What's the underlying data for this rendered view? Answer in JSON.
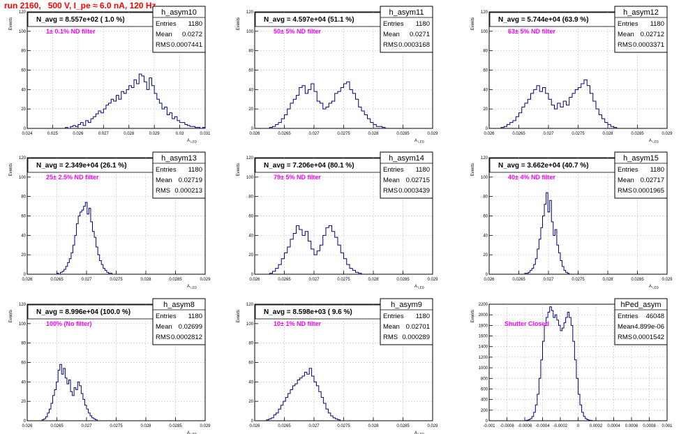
{
  "page": {
    "title": "run 2160,   500 V, I_pe ≈ 6.0 nA, 120 Hz"
  },
  "colors": {
    "histogram": "#000080",
    "title": "#ff0000",
    "annotation": "#ff00ff",
    "grid": "#c8c8c8"
  },
  "labels": {
    "y_axis": "Events",
    "x_axis_symbol": "A",
    "x_axis_subscript": "LED",
    "stats_entries": "Entries",
    "stats_mean": "Mean",
    "stats_rms": "RMS"
  },
  "chart_data": [
    {
      "type": "bar",
      "name": "h_asym10",
      "summary": "N_avg = 8.557e+02 ( 1.0 %)",
      "annotation": "1± 0.1% ND filter",
      "stats": {
        "entries": "1180",
        "mean": "0.0272",
        "rms": "0.0007441"
      },
      "ylabel": "Events",
      "xlabel": "A_LED",
      "xlim": [
        0.024,
        0.031
      ],
      "ylim": [
        0,
        120
      ],
      "grid": true,
      "xticks": [
        "0.024",
        "0.025",
        "0.026",
        "0.027",
        "0.028",
        "0.029",
        "0.03",
        "0.031"
      ],
      "yticks": [
        "0",
        "20",
        "40",
        "60",
        "80",
        "100",
        "120"
      ],
      "bin_start": 0.0255,
      "bin_width": 0.0001,
      "values": [
        1,
        0,
        2,
        3,
        2,
        4,
        6,
        3,
        8,
        6,
        10,
        12,
        15,
        18,
        16,
        20,
        24,
        26,
        30,
        28,
        34,
        30,
        38,
        36,
        40,
        44,
        42,
        50,
        46,
        56,
        54,
        48,
        40,
        52,
        44,
        36,
        30,
        26,
        20,
        22,
        14,
        16,
        10,
        12,
        8,
        6,
        6,
        4,
        3,
        2,
        2,
        1,
        1,
        0,
        1
      ]
    },
    {
      "type": "bar",
      "name": "h_asym11",
      "summary": "N_avg = 4.597e+04 (51.1 %)",
      "annotation": "50± 5% ND filter",
      "stats": {
        "entries": "1180",
        "mean": "0.0271",
        "rms": "0.0003168"
      },
      "ylabel": "Events",
      "xlabel": "A_LED",
      "xlim": [
        0.026,
        0.029
      ],
      "ylim": [
        0,
        120
      ],
      "grid": true,
      "xticks": [
        "0.026",
        "0.0265",
        "0.027",
        "0.0275",
        "0.028",
        "0.0285",
        "0.029"
      ],
      "yticks": [
        "0",
        "20",
        "40",
        "60",
        "80",
        "100",
        "120"
      ],
      "bin_start": 0.02625,
      "bin_width": 5e-05,
      "values": [
        1,
        2,
        4,
        6,
        10,
        14,
        20,
        26,
        30,
        34,
        42,
        44,
        36,
        40,
        46,
        38,
        28,
        26,
        20,
        22,
        26,
        28,
        36,
        38,
        42,
        46,
        48,
        40,
        36,
        30,
        22,
        18,
        14,
        10,
        6,
        4,
        2,
        2,
        1
      ]
    },
    {
      "type": "bar",
      "name": "h_asym12",
      "summary": "N_avg = 5.744e+04 (63.9 %)",
      "annotation": "63± 5% ND filter",
      "stats": {
        "entries": "1180",
        "mean": "0.02712",
        "rms": "0.0003371"
      },
      "ylabel": "Events",
      "xlabel": "A_LED",
      "xlim": [
        0.026,
        0.029
      ],
      "ylim": [
        0,
        120
      ],
      "grid": true,
      "xticks": [
        "0.026",
        "0.0265",
        "0.027",
        "0.0275",
        "0.028",
        "0.0285",
        "0.029"
      ],
      "yticks": [
        "0",
        "20",
        "40",
        "60",
        "80",
        "100",
        "120"
      ],
      "bin_start": 0.0262,
      "bin_width": 5e-05,
      "values": [
        1,
        2,
        4,
        6,
        8,
        12,
        16,
        22,
        26,
        30,
        36,
        40,
        44,
        38,
        42,
        36,
        30,
        24,
        20,
        26,
        22,
        28,
        24,
        32,
        36,
        40,
        42,
        46,
        50,
        44,
        36,
        28,
        20,
        14,
        10,
        6,
        4,
        2,
        1
      ]
    },
    {
      "type": "bar",
      "name": "h_asym13",
      "summary": "N_avg = 2.349e+04 (26.1 %)",
      "annotation": "25± 2.5% ND filter",
      "stats": {
        "entries": "1180",
        "mean": "0.02719",
        "rms": "0.000213"
      },
      "ylabel": "Events",
      "xlabel": "A_LED",
      "xlim": [
        0.026,
        0.029
      ],
      "ylim": [
        0,
        120
      ],
      "grid": true,
      "xticks": [
        "0.026",
        "0.0265",
        "0.027",
        "0.0275",
        "0.028",
        "0.0285",
        "0.029"
      ],
      "yticks": [
        "0",
        "20",
        "40",
        "60",
        "80",
        "100",
        "120"
      ],
      "bin_start": 0.0265,
      "bin_width": 3e-05,
      "values": [
        1,
        0,
        2,
        3,
        5,
        8,
        12,
        16,
        22,
        30,
        40,
        52,
        60,
        64,
        66,
        70,
        74,
        62,
        68,
        54,
        44,
        38,
        28,
        20,
        14,
        10,
        6,
        4,
        2,
        1,
        1
      ]
    },
    {
      "type": "bar",
      "name": "h_asym14",
      "summary": "N_avg = 7.206e+04 (80.1 %)",
      "annotation": "79± 5% ND filter",
      "stats": {
        "entries": "1180",
        "mean": "0.02715",
        "rms": "0.0003439"
      },
      "ylabel": "Events",
      "xlabel": "A_LED",
      "xlim": [
        0.026,
        0.029
      ],
      "ylim": [
        0,
        120
      ],
      "grid": true,
      "xticks": [
        "0.026",
        "0.0265",
        "0.027",
        "0.0275",
        "0.028",
        "0.0285",
        "0.029"
      ],
      "yticks": [
        "0",
        "20",
        "40",
        "60",
        "80",
        "100",
        "120"
      ],
      "bin_start": 0.02625,
      "bin_width": 5e-05,
      "values": [
        1,
        3,
        6,
        10,
        16,
        22,
        28,
        36,
        42,
        50,
        46,
        40,
        44,
        34,
        26,
        20,
        24,
        30,
        40,
        48,
        50,
        44,
        38,
        30,
        22,
        16,
        10,
        6,
        4,
        2,
        1
      ]
    },
    {
      "type": "bar",
      "name": "h_asym15",
      "summary": "N_avg = 3.662e+04 (40.7 %)",
      "annotation": "40± 4% ND filter",
      "stats": {
        "entries": "1180",
        "mean": "0.02717",
        "rms": "0.0001965"
      },
      "ylabel": "Events",
      "xlabel": "A_LED",
      "xlim": [
        0.026,
        0.029
      ],
      "ylim": [
        0,
        120
      ],
      "grid": true,
      "xticks": [
        "0.026",
        "0.0265",
        "0.027",
        "0.0275",
        "0.028",
        "0.0285",
        "0.029"
      ],
      "yticks": [
        "0",
        "20",
        "40",
        "60",
        "80",
        "100",
        "120"
      ],
      "bin_start": 0.0266,
      "bin_width": 3e-05,
      "values": [
        1,
        1,
        2,
        4,
        6,
        10,
        16,
        26,
        36,
        48,
        60,
        72,
        84,
        64,
        76,
        54,
        40,
        46,
        30,
        22,
        14,
        8,
        4,
        2,
        1
      ]
    },
    {
      "type": "bar",
      "name": "h_asym8",
      "summary": "N_avg = 8.996e+04 (100.0 %)",
      "annotation": "100% (No filter)",
      "stats": {
        "entries": "1180",
        "mean": "0.02699",
        "rms": "0.0002812"
      },
      "ylabel": "Events",
      "xlabel": "A_LED",
      "xlim": [
        0.026,
        0.029
      ],
      "ylim": [
        0,
        120
      ],
      "grid": true,
      "xticks": [
        "0.026",
        "0.0265",
        "0.027",
        "0.0275",
        "0.028",
        "0.0285",
        "0.029"
      ],
      "yticks": [
        "0",
        "20",
        "40",
        "60",
        "80",
        "100",
        "120"
      ],
      "bin_start": 0.02625,
      "bin_width": 3e-05,
      "values": [
        1,
        2,
        4,
        8,
        12,
        18,
        26,
        32,
        40,
        52,
        58,
        48,
        54,
        44,
        38,
        42,
        30,
        26,
        34,
        32,
        40,
        36,
        28,
        22,
        16,
        12,
        8,
        5,
        3,
        2,
        1
      ]
    },
    {
      "type": "bar",
      "name": "h_asym9",
      "summary": "N_avg = 8.598e+03 ( 9.6 %)",
      "annotation": "10± 1% ND filter",
      "stats": {
        "entries": "1180",
        "mean": "0.02701",
        "rms": "0.000289"
      },
      "ylabel": "Events",
      "xlabel": "A_LED",
      "xlim": [
        0.026,
        0.029
      ],
      "ylim": [
        0,
        120
      ],
      "grid": true,
      "xticks": [
        "0.026",
        "0.0265",
        "0.027",
        "0.0275",
        "0.028",
        "0.0285",
        "0.029"
      ],
      "yticks": [
        "0",
        "20",
        "40",
        "60",
        "80",
        "100",
        "120"
      ],
      "bin_start": 0.0262,
      "bin_width": 4e-05,
      "values": [
        1,
        2,
        3,
        6,
        8,
        12,
        16,
        20,
        24,
        28,
        32,
        36,
        38,
        42,
        44,
        46,
        50,
        48,
        54,
        46,
        40,
        36,
        30,
        24,
        18,
        12,
        8,
        5,
        3,
        2,
        1
      ]
    },
    {
      "type": "bar",
      "name": "hPed_asym",
      "summary": "",
      "annotation": "Shutter Closed",
      "stats": {
        "entries": "46048",
        "mean": "-4.899e-06",
        "rms": "0.0001542"
      },
      "ylabel": "Events",
      "xlabel": "",
      "xlim": [
        -0.001,
        0.001
      ],
      "ylim": [
        0,
        2200
      ],
      "grid": true,
      "xticks": [
        "-0.001",
        "-0.0008",
        "-0.0006",
        "-0.0004",
        "-0.0002",
        "0",
        "0.0002",
        "0.0004",
        "0.0006",
        "0.0008",
        "0.001"
      ],
      "yticks": [
        "0",
        "200",
        "400",
        "600",
        "800",
        "1000",
        "1200",
        "1400",
        "1600",
        "1800",
        "2000",
        "2200"
      ],
      "bin_start": -0.0006,
      "bin_width": 2e-05,
      "values": [
        5,
        10,
        20,
        40,
        80,
        160,
        300,
        500,
        800,
        1150,
        1500,
        1800,
        1950,
        2050,
        2150,
        2080,
        1950,
        2000,
        1900,
        1800,
        1700,
        1750,
        1850,
        1950,
        2050,
        1950,
        1800,
        1500,
        1150,
        800,
        500,
        300,
        160,
        80,
        40,
        20,
        10,
        5
      ]
    }
  ]
}
